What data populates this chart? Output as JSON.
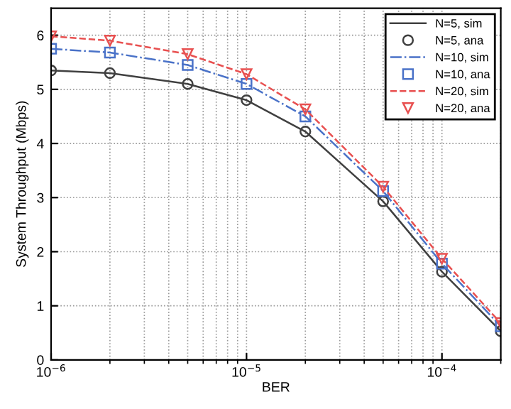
{
  "chart_data": {
    "type": "line",
    "xlabel": "BER",
    "ylabel": "System Throughput (Mbps)",
    "log": "x",
    "x": [
      1e-06,
      2e-06,
      5e-06,
      1e-05,
      2e-05,
      5e-05,
      0.0001,
      0.0002
    ],
    "xlim": [
      1e-06,
      0.0002
    ],
    "xticks": [
      {
        "value": 1e-06,
        "label": "10$^{−6}$"
      },
      {
        "value": 1e-05,
        "label": "10$^{−5}$"
      },
      {
        "value": 0.0001,
        "label": "10$^{−4}$"
      }
    ],
    "ylim": [
      0,
      6.5
    ],
    "yticks": [
      0,
      1,
      2,
      3,
      4,
      5,
      6
    ],
    "grid": true,
    "legend": "top right",
    "series": [
      {
        "name": "N=5, sim",
        "line_style": "solid",
        "marker": "none",
        "color": "#404040",
        "values": [
          5.35,
          5.3,
          5.1,
          4.8,
          4.22,
          2.93,
          1.63,
          0.53
        ]
      },
      {
        "name": "N=5, ana",
        "type": "scatter",
        "marker": "circle",
        "color": "#404040",
        "values": [
          5.35,
          5.3,
          5.1,
          4.8,
          4.22,
          2.93,
          1.63,
          0.53
        ]
      },
      {
        "name": "N=10, sim",
        "line_style": "dashdot",
        "marker": "none",
        "color": "#4a72c8",
        "values": [
          5.75,
          5.68,
          5.45,
          5.1,
          4.5,
          3.12,
          1.78,
          0.62
        ]
      },
      {
        "name": "N=10, ana",
        "type": "scatter",
        "marker": "square",
        "color": "#4a72c8",
        "values": [
          5.75,
          5.68,
          5.45,
          5.1,
          4.5,
          3.12,
          1.78,
          0.62
        ]
      },
      {
        "name": "N=20, sim",
        "line_style": "dashed",
        "marker": "none",
        "color": "#e85050",
        "values": [
          5.98,
          5.9,
          5.65,
          5.28,
          4.63,
          3.2,
          1.87,
          0.68
        ]
      },
      {
        "name": "N=20, ana",
        "type": "scatter",
        "marker": "triangle",
        "color": "#e85050",
        "values": [
          5.98,
          5.9,
          5.65,
          5.28,
          4.63,
          3.2,
          1.87,
          0.68
        ]
      }
    ]
  }
}
